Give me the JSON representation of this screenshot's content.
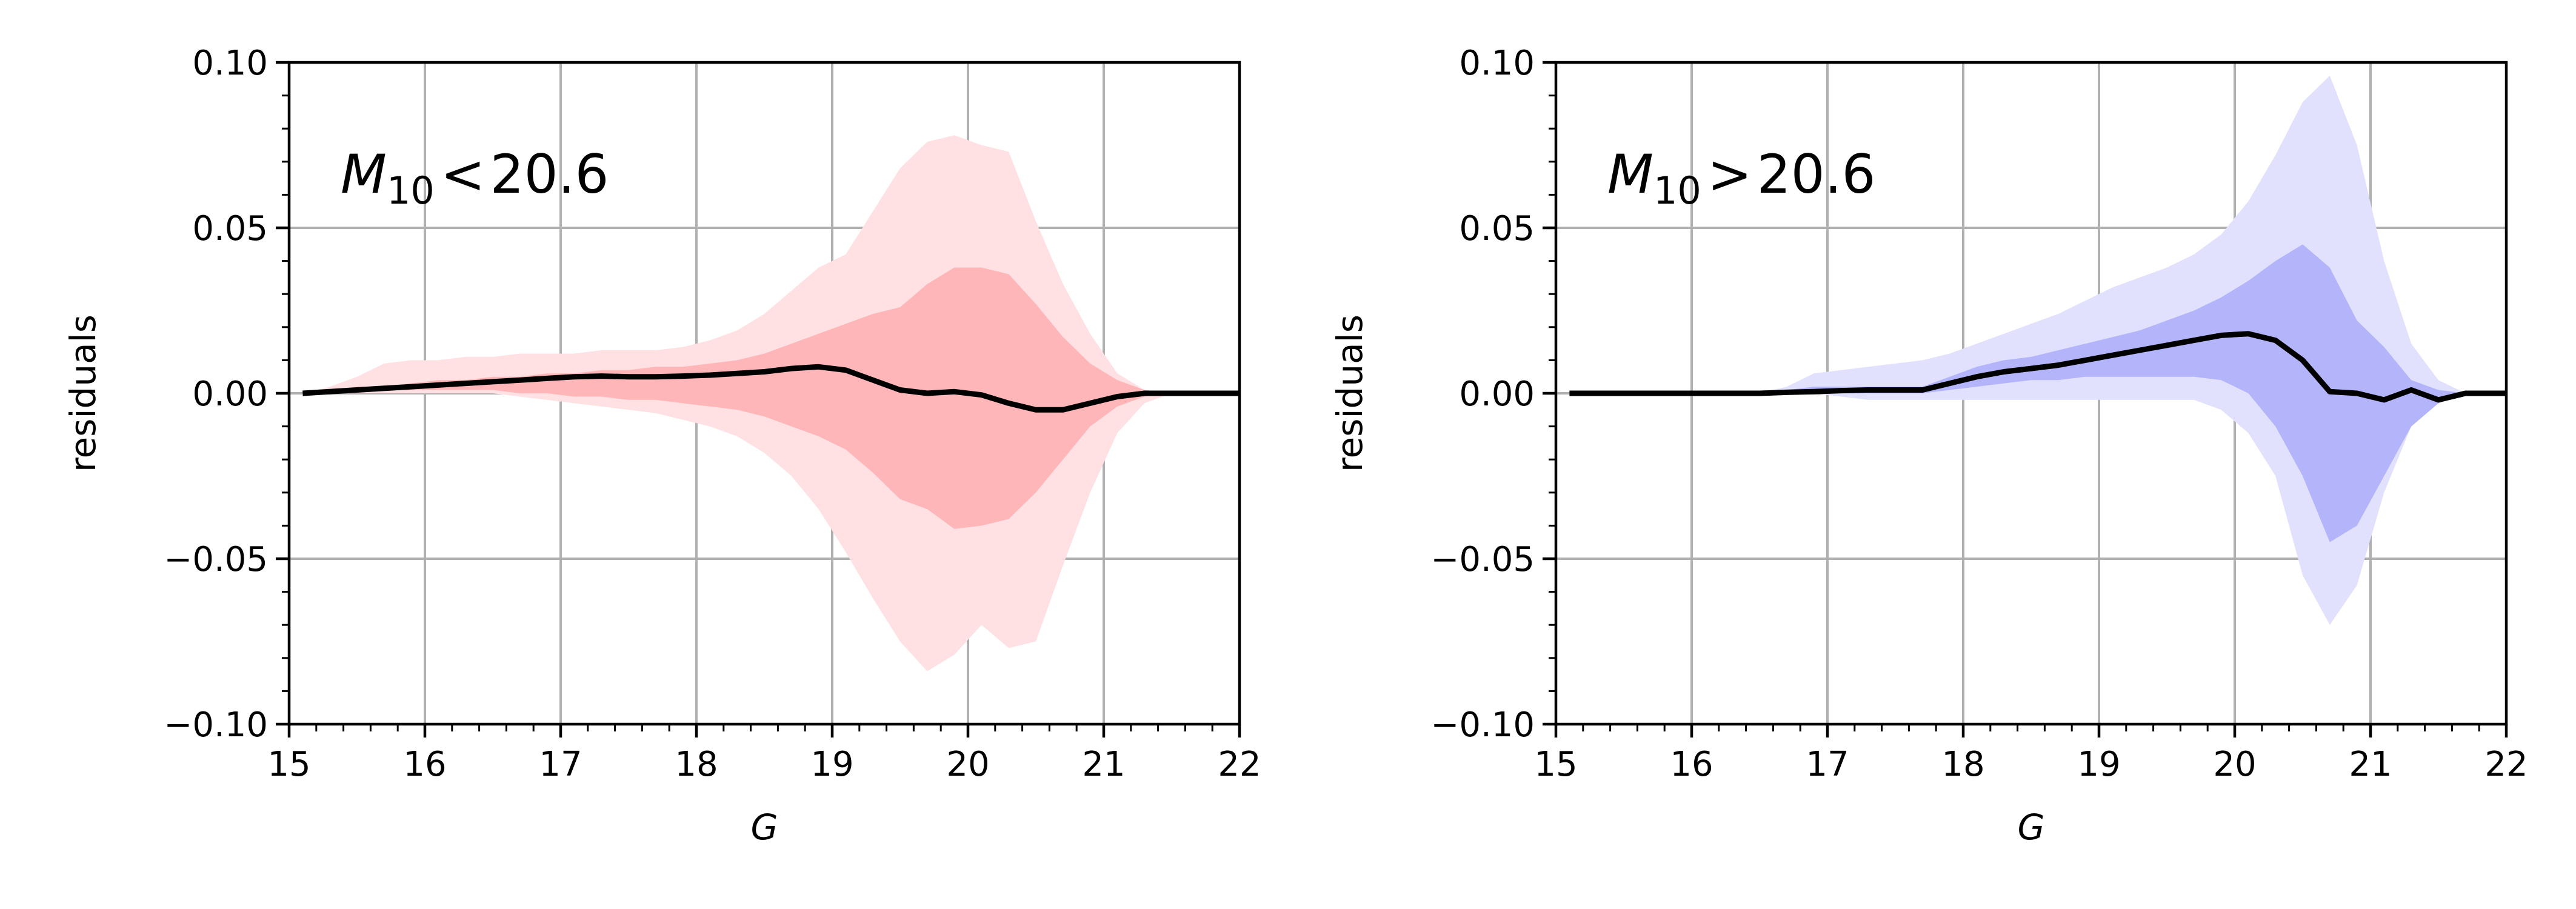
{
  "chart_data": [
    {
      "type": "area",
      "panel": "left",
      "annotation": {
        "symbol": "M",
        "subscript": "10",
        "relation": "<",
        "value": "20.6"
      },
      "xlabel": "G",
      "ylabel": "residuals",
      "xlim": [
        15,
        22
      ],
      "ylim": [
        -0.1,
        0.1
      ],
      "xticks": [
        "15",
        "16",
        "17",
        "18",
        "19",
        "20",
        "21",
        "22"
      ],
      "yticks": [
        "0.10",
        "0.05",
        "0.00",
        "−0.05",
        "−0.10"
      ],
      "grid": true,
      "colors": {
        "outer_band": "#ffe0e3",
        "inner_band": "#ffb6b9",
        "median": "#000000"
      },
      "x": [
        15.1,
        15.3,
        15.5,
        15.7,
        15.9,
        16.1,
        16.3,
        16.5,
        16.7,
        16.9,
        17.1,
        17.3,
        17.5,
        17.7,
        17.9,
        18.1,
        18.3,
        18.5,
        18.7,
        18.9,
        19.1,
        19.3,
        19.5,
        19.7,
        19.9,
        20.1,
        20.3,
        20.5,
        20.7,
        20.9,
        21.1,
        21.3,
        21.5,
        21.7,
        21.9,
        22.0
      ],
      "series": [
        {
          "kind": "band",
          "lower": [
            0.0,
            0.0,
            0.0,
            0.0,
            0.0,
            0.0,
            0.0,
            0.0,
            -0.001,
            -0.002,
            -0.003,
            -0.004,
            -0.005,
            -0.006,
            -0.008,
            -0.01,
            -0.013,
            -0.018,
            -0.025,
            -0.035,
            -0.048,
            -0.062,
            -0.075,
            -0.084,
            -0.079,
            -0.07,
            -0.077,
            -0.075,
            -0.052,
            -0.03,
            -0.012,
            -0.003,
            0.0,
            0.0,
            0.0,
            0.0
          ],
          "upper": [
            0.0,
            0.002,
            0.005,
            0.009,
            0.01,
            0.01,
            0.011,
            0.011,
            0.012,
            0.012,
            0.012,
            0.013,
            0.013,
            0.013,
            0.014,
            0.016,
            0.019,
            0.024,
            0.031,
            0.038,
            0.042,
            0.055,
            0.068,
            0.076,
            0.078,
            0.075,
            0.073,
            0.052,
            0.033,
            0.018,
            0.006,
            0.001,
            0.0,
            0.0,
            0.0,
            0.0
          ]
        },
        {
          "kind": "band",
          "lower": [
            0.0,
            0.0,
            0.001,
            0.001,
            0.001,
            0.001,
            0.001,
            0.001,
            0.0,
            0.0,
            -0.001,
            -0.001,
            -0.002,
            -0.002,
            -0.003,
            -0.004,
            -0.005,
            -0.007,
            -0.01,
            -0.013,
            -0.017,
            -0.024,
            -0.032,
            -0.035,
            -0.041,
            -0.04,
            -0.038,
            -0.03,
            -0.02,
            -0.01,
            -0.004,
            -0.001,
            0.0,
            0.0,
            0.0,
            0.0
          ],
          "upper": [
            0.0,
            0.001,
            0.002,
            0.002,
            0.003,
            0.004,
            0.004,
            0.005,
            0.005,
            0.006,
            0.006,
            0.007,
            0.007,
            0.008,
            0.008,
            0.009,
            0.01,
            0.012,
            0.015,
            0.018,
            0.021,
            0.024,
            0.026,
            0.033,
            0.038,
            0.038,
            0.036,
            0.027,
            0.017,
            0.009,
            0.004,
            0.001,
            0.0,
            0.0,
            0.0,
            0.0
          ]
        },
        {
          "kind": "line",
          "values": [
            0.0,
            0.0005,
            0.001,
            0.0015,
            0.002,
            0.0025,
            0.003,
            0.0035,
            0.004,
            0.0045,
            0.005,
            0.0052,
            0.005,
            0.005,
            0.0052,
            0.0055,
            0.006,
            0.0065,
            0.0075,
            0.008,
            0.007,
            0.004,
            0.001,
            0.0,
            0.0005,
            -0.0005,
            -0.003,
            -0.005,
            -0.005,
            -0.003,
            -0.001,
            0.0,
            0.0,
            0.0,
            0.0,
            0.0
          ]
        }
      ]
    },
    {
      "type": "area",
      "panel": "right",
      "annotation": {
        "symbol": "M",
        "subscript": "10",
        "relation": ">",
        "value": "20.6"
      },
      "xlabel": "G",
      "ylabel": "residuals",
      "xlim": [
        15,
        22
      ],
      "ylim": [
        -0.1,
        0.1
      ],
      "xticks": [
        "15",
        "16",
        "17",
        "18",
        "19",
        "20",
        "21",
        "22"
      ],
      "yticks": [
        "0.10",
        "0.05",
        "0.00",
        "−0.05",
        "−0.10"
      ],
      "grid": true,
      "colors": {
        "outer_band": "#e1e1fd",
        "inner_band": "#b4b4fb",
        "median": "#000000"
      },
      "x": [
        15.1,
        15.3,
        15.5,
        15.7,
        15.9,
        16.1,
        16.3,
        16.5,
        16.7,
        16.9,
        17.1,
        17.3,
        17.5,
        17.7,
        17.9,
        18.1,
        18.3,
        18.5,
        18.7,
        18.9,
        19.1,
        19.3,
        19.5,
        19.7,
        19.9,
        20.1,
        20.3,
        20.5,
        20.7,
        20.9,
        21.1,
        21.3,
        21.5,
        21.7,
        21.9,
        22.0
      ],
      "series": [
        {
          "kind": "band",
          "lower": [
            0.0,
            0.0,
            0.0,
            0.0,
            0.0,
            0.0,
            0.0,
            0.0,
            0.0,
            0.0,
            -0.001,
            -0.002,
            -0.002,
            -0.002,
            -0.002,
            -0.002,
            -0.002,
            -0.002,
            -0.002,
            -0.002,
            -0.002,
            -0.002,
            -0.002,
            -0.002,
            -0.005,
            -0.012,
            -0.025,
            -0.055,
            -0.07,
            -0.058,
            -0.03,
            -0.01,
            -0.003,
            0.0,
            0.0,
            0.0
          ],
          "upper": [
            0.0,
            0.0,
            0.0,
            0.0,
            0.0,
            0.0,
            0.0,
            0.0,
            0.002,
            0.006,
            0.007,
            0.008,
            0.009,
            0.01,
            0.012,
            0.015,
            0.018,
            0.021,
            0.024,
            0.028,
            0.032,
            0.035,
            0.038,
            0.042,
            0.048,
            0.058,
            0.072,
            0.088,
            0.096,
            0.075,
            0.04,
            0.015,
            0.004,
            0.0,
            0.0,
            0.0
          ]
        },
        {
          "kind": "band",
          "lower": [
            0.0,
            0.0,
            0.0,
            0.0,
            0.0,
            0.0,
            0.0,
            0.0,
            0.0,
            0.0,
            0.0,
            0.0,
            0.0,
            0.0,
            0.001,
            0.002,
            0.003,
            0.004,
            0.004,
            0.005,
            0.005,
            0.005,
            0.005,
            0.005,
            0.004,
            0.0,
            -0.01,
            -0.025,
            -0.045,
            -0.04,
            -0.025,
            -0.01,
            -0.003,
            0.0,
            0.0,
            0.0
          ],
          "upper": [
            0.0,
            0.0,
            0.0,
            0.0,
            0.0,
            0.0,
            0.0,
            0.0,
            0.001,
            0.002,
            0.002,
            0.002,
            0.002,
            0.002,
            0.005,
            0.008,
            0.01,
            0.011,
            0.013,
            0.015,
            0.017,
            0.019,
            0.022,
            0.025,
            0.029,
            0.034,
            0.04,
            0.045,
            0.038,
            0.022,
            0.014,
            0.004,
            0.001,
            0.0,
            0.0,
            0.0
          ]
        },
        {
          "kind": "line",
          "values": [
            0.0,
            0.0,
            0.0,
            0.0,
            0.0,
            0.0,
            0.0,
            0.0,
            0.0003,
            0.0005,
            0.0008,
            0.001,
            0.001,
            0.001,
            0.003,
            0.005,
            0.0065,
            0.0075,
            0.0085,
            0.01,
            0.0115,
            0.013,
            0.0145,
            0.016,
            0.0175,
            0.018,
            0.016,
            0.01,
            0.0005,
            0.0,
            -0.002,
            0.001,
            -0.002,
            0.0,
            0.0,
            0.0
          ]
        }
      ]
    }
  ]
}
